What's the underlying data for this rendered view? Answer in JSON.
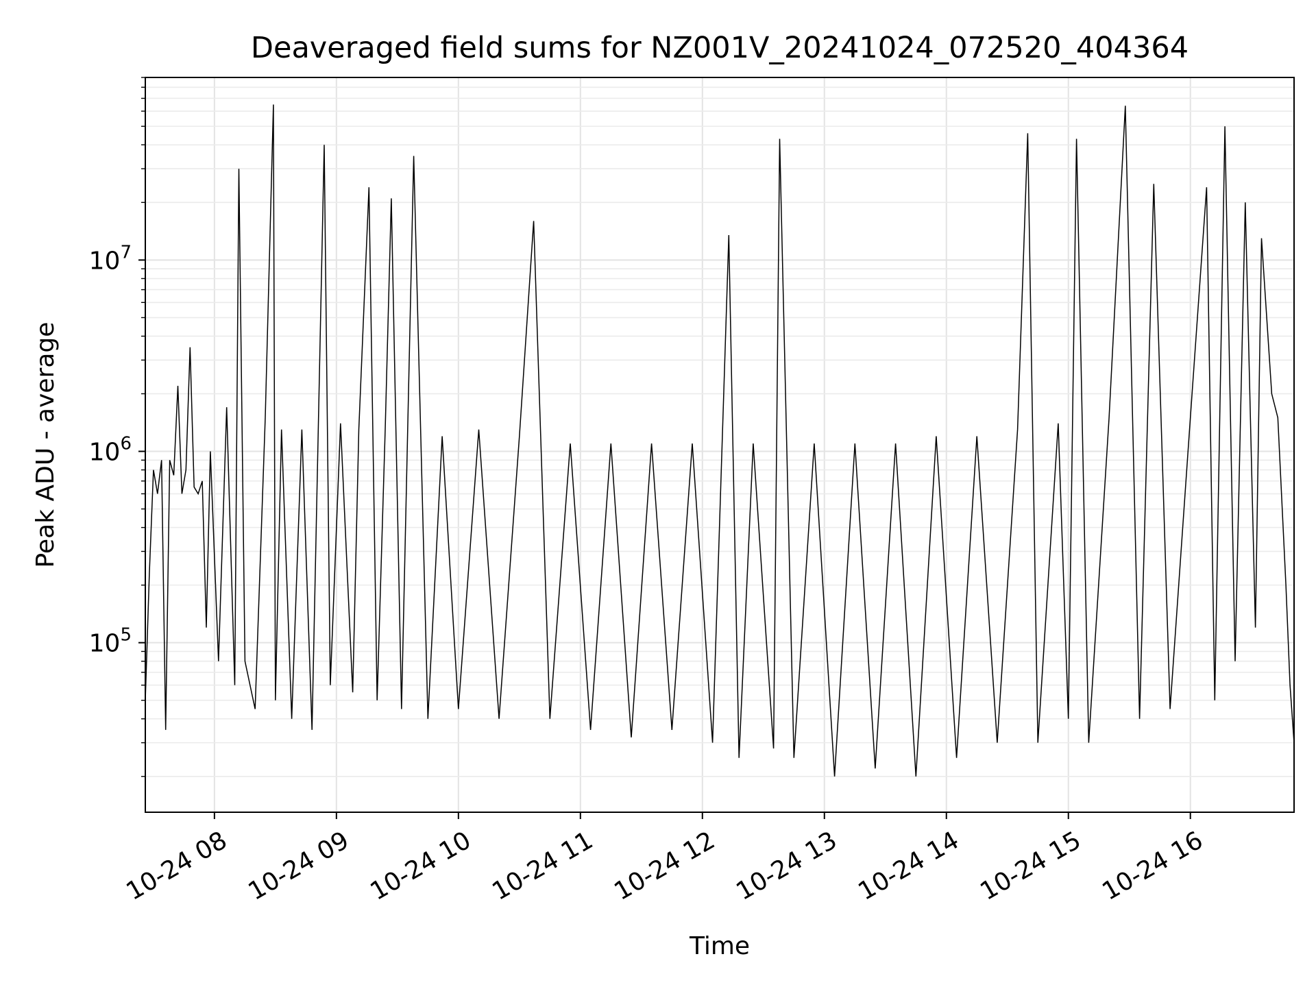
{
  "chart_data": {
    "type": "line",
    "title": "Deaveraged field sums for NZ001V_20241024_072520_404364",
    "xlabel": "Time",
    "ylabel": "Peak ADU - average",
    "y_scale": "log",
    "xlim": [
      "2024-10-24 07:26",
      "2024-10-24 16:51"
    ],
    "ylim": [
      13000,
      90000000
    ],
    "x_ticks": [
      "2024-10-24 08:00",
      "2024-10-24 09:00",
      "2024-10-24 10:00",
      "2024-10-24 11:00",
      "2024-10-24 12:00",
      "2024-10-24 13:00",
      "2024-10-24 14:00",
      "2024-10-24 15:00",
      "2024-10-24 16:00"
    ],
    "x_tick_labels": [
      "10-24 08",
      "10-24 09",
      "10-24 10",
      "10-24 11",
      "10-24 12",
      "10-24 13",
      "10-24 14",
      "10-24 15",
      "10-24 16"
    ],
    "y_ticks": [
      100000,
      1000000,
      10000000
    ],
    "y_tick_mantissa": "10",
    "y_tick_exponents": [
      "5",
      "6",
      "7"
    ],
    "grid": true,
    "series_color": "#000000",
    "series": [
      {
        "x": [
          "2024-10-24 07:26",
          "2024-10-24 07:28",
          "2024-10-24 07:30",
          "2024-10-24 07:32",
          "2024-10-24 07:34",
          "2024-10-24 07:36",
          "2024-10-24 07:38",
          "2024-10-24 07:40",
          "2024-10-24 07:42",
          "2024-10-24 07:44",
          "2024-10-24 07:46",
          "2024-10-24 07:48",
          "2024-10-24 07:50",
          "2024-10-24 07:52",
          "2024-10-24 07:54",
          "2024-10-24 07:56",
          "2024-10-24 07:58",
          "2024-10-24 08:02",
          "2024-10-24 08:06",
          "2024-10-24 08:10",
          "2024-10-24 08:12",
          "2024-10-24 08:15",
          "2024-10-24 08:20",
          "2024-10-24 08:25",
          "2024-10-24 08:29",
          "2024-10-24 08:30",
          "2024-10-24 08:33",
          "2024-10-24 08:38",
          "2024-10-24 08:43",
          "2024-10-24 08:48",
          "2024-10-24 08:54",
          "2024-10-24 08:57",
          "2024-10-24 09:02",
          "2024-10-24 09:08",
          "2024-10-24 09:11",
          "2024-10-24 09:16",
          "2024-10-24 09:20",
          "2024-10-24 09:24",
          "2024-10-24 09:27",
          "2024-10-24 09:32",
          "2024-10-24 09:38",
          "2024-10-24 09:45",
          "2024-10-24 09:52",
          "2024-10-24 10:00",
          "2024-10-24 10:10",
          "2024-10-24 10:20",
          "2024-10-24 10:30",
          "2024-10-24 10:37",
          "2024-10-24 10:45",
          "2024-10-24 10:55",
          "2024-10-24 11:05",
          "2024-10-24 11:15",
          "2024-10-24 11:25",
          "2024-10-24 11:35",
          "2024-10-24 11:45",
          "2024-10-24 11:55",
          "2024-10-24 12:05",
          "2024-10-24 12:13",
          "2024-10-24 12:18",
          "2024-10-24 12:25",
          "2024-10-24 12:35",
          "2024-10-24 12:38",
          "2024-10-24 12:45",
          "2024-10-24 12:55",
          "2024-10-24 13:05",
          "2024-10-24 13:15",
          "2024-10-24 13:25",
          "2024-10-24 13:35",
          "2024-10-24 13:45",
          "2024-10-24 13:55",
          "2024-10-24 14:05",
          "2024-10-24 14:15",
          "2024-10-24 14:25",
          "2024-10-24 14:35",
          "2024-10-24 14:40",
          "2024-10-24 14:45",
          "2024-10-24 14:55",
          "2024-10-24 15:00",
          "2024-10-24 15:04",
          "2024-10-24 15:10",
          "2024-10-24 15:20",
          "2024-10-24 15:28",
          "2024-10-24 15:35",
          "2024-10-24 15:42",
          "2024-10-24 15:50",
          "2024-10-24 16:00",
          "2024-10-24 16:08",
          "2024-10-24 16:12",
          "2024-10-24 16:17",
          "2024-10-24 16:22",
          "2024-10-24 16:27",
          "2024-10-24 16:32",
          "2024-10-24 16:35",
          "2024-10-24 16:40",
          "2024-10-24 16:43",
          "2024-10-24 16:47",
          "2024-10-24 16:49",
          "2024-10-24 16:51"
        ],
        "y": [
          50000,
          230000,
          800000,
          600000,
          900000,
          35000,
          900000,
          750000,
          2200000,
          600000,
          800000,
          3500000,
          650000,
          600000,
          700000,
          120000,
          1000000,
          80000,
          1700000,
          60000,
          30000000,
          80000,
          45000,
          1500000,
          65000000,
          50000,
          1300000,
          40000,
          1300000,
          35000,
          40000000,
          60000,
          1400000,
          55000,
          1300000,
          24000000,
          50000,
          1300000,
          21000000,
          45000,
          35000000,
          40000,
          1200000,
          45000,
          1300000,
          40000,
          1200000,
          16000000,
          40000,
          1100000,
          35000,
          1100000,
          32000,
          1100000,
          35000,
          1100000,
          30000,
          13500000,
          25000,
          1100000,
          28000,
          43000000,
          25000,
          1100000,
          20000,
          1100000,
          22000,
          1100000,
          20000,
          1200000,
          25000,
          1200000,
          30000,
          1300000,
          46000000,
          30000,
          1400000,
          40000,
          43000000,
          30000,
          1500000,
          64000000,
          40000,
          25000000,
          45000,
          1500000,
          24000000,
          50000,
          50000000,
          80000,
          20000000,
          120000,
          13000000,
          2000000,
          1500000,
          200000,
          60000,
          30000
        ]
      }
    ]
  }
}
